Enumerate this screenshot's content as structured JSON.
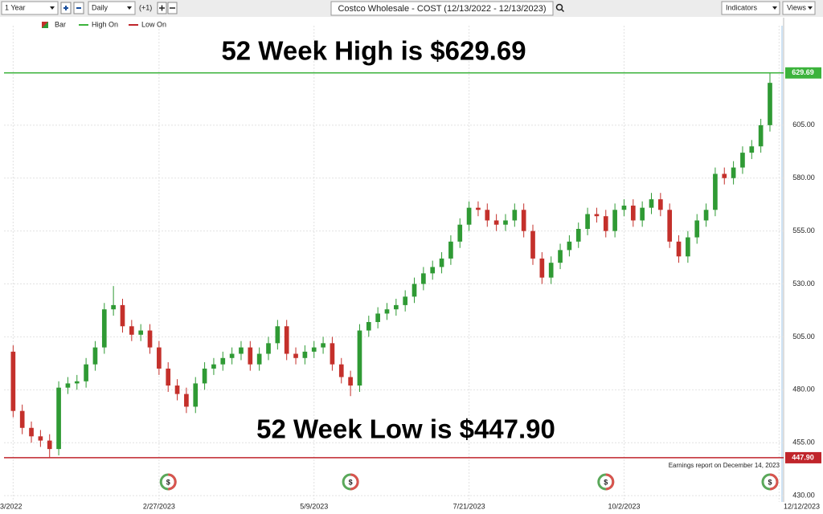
{
  "toolbar": {
    "period": "1 Year",
    "interval": "Daily",
    "offset": "(+1)",
    "symbol_title": "Costco Wholesale - COST (12/13/2022 - 12/13/2023)",
    "indicators": "Indicators",
    "views": "Views"
  },
  "chart_data": {
    "type": "candlestick",
    "legend": [
      "Bar",
      "High On",
      "Low On"
    ],
    "up_color": "#2f9a34",
    "down_color": "#c4302b",
    "annotations": [
      "52 Week High is $629.69",
      "52 Week Low is $447.90"
    ],
    "note": "Earnings report on December 14, 2023",
    "earnings_marker": "$",
    "earnings_x": [
      17,
      37,
      65,
      83
    ],
    "hlines": [
      {
        "name": "High On",
        "value": 629.69,
        "label": "629.69",
        "color": "#3cb33c"
      },
      {
        "name": "Low On",
        "value": 447.9,
        "label": "447.90",
        "color": "#c0252b"
      }
    ],
    "xlim": [
      -1,
      84.5
    ],
    "xticks": [
      {
        "value": 0,
        "label": "3/2022"
      },
      {
        "value": 16,
        "label": "2/27/2023"
      },
      {
        "value": 33,
        "label": "5/9/2023"
      },
      {
        "value": 50,
        "label": "7/21/2023"
      },
      {
        "value": 67,
        "label": "10/2/2023"
      },
      {
        "value": 84,
        "label": "12/12/2023"
      }
    ],
    "ylim": [
      427,
      652
    ],
    "yticks": [
      {
        "value": 430,
        "label": "430.00"
      },
      {
        "value": 455,
        "label": "455.00"
      },
      {
        "value": 480,
        "label": "480.00"
      },
      {
        "value": 505,
        "label": "505.00"
      },
      {
        "value": 530,
        "label": "530.00"
      },
      {
        "value": 555,
        "label": "555.00"
      },
      {
        "value": 580,
        "label": "580.00"
      },
      {
        "value": 605,
        "label": "605.00"
      }
    ],
    "open": [
      498,
      470,
      462,
      458,
      456,
      452,
      481,
      483,
      484,
      492,
      500,
      518,
      520,
      510,
      506,
      508,
      500,
      490,
      482,
      478,
      472,
      483,
      490,
      492,
      495,
      497,
      500,
      492,
      497,
      502,
      510,
      497,
      495,
      498,
      500,
      502,
      492,
      486,
      482,
      508,
      512,
      516,
      518,
      520,
      524,
      530,
      535,
      538,
      542,
      550,
      558,
      566,
      565,
      560,
      558,
      560,
      565,
      555,
      542,
      533,
      540,
      546,
      550,
      556,
      563,
      562,
      555,
      565,
      567,
      560,
      566,
      570,
      565,
      550,
      543,
      552,
      560,
      565,
      582,
      580,
      585,
      592,
      595,
      605
    ],
    "high": [
      501,
      473,
      465,
      461,
      459,
      484,
      486,
      487,
      495,
      503,
      521,
      529,
      523,
      513,
      511,
      511,
      503,
      493,
      485,
      481,
      486,
      493,
      495,
      498,
      500,
      503,
      503,
      500,
      505,
      513,
      513,
      500,
      501,
      503,
      505,
      505,
      495,
      489,
      511,
      515,
      519,
      521,
      523,
      527,
      533,
      538,
      541,
      545,
      553,
      561,
      569,
      569,
      568,
      563,
      563,
      568,
      568,
      558,
      545,
      543,
      549,
      553,
      559,
      566,
      566,
      565,
      568,
      570,
      570,
      569,
      573,
      573,
      568,
      553,
      555,
      563,
      568,
      585,
      585,
      588,
      595,
      598,
      608,
      629.69
    ],
    "low": [
      467,
      459,
      455,
      453,
      447.9,
      449,
      478,
      480,
      481,
      489,
      497,
      515,
      507,
      503,
      503,
      497,
      487,
      479,
      475,
      469,
      469,
      480,
      487,
      489,
      492,
      494,
      489,
      489,
      494,
      499,
      494,
      492,
      492,
      495,
      497,
      489,
      483,
      477,
      479,
      505,
      509,
      513,
      515,
      517,
      521,
      527,
      532,
      535,
      539,
      547,
      555,
      562,
      557,
      555,
      555,
      557,
      552,
      539,
      530,
      530,
      537,
      543,
      547,
      553,
      559,
      552,
      552,
      562,
      557,
      557,
      563,
      562,
      547,
      540,
      540,
      549,
      557,
      562,
      577,
      577,
      582,
      589,
      592,
      602
    ],
    "close": [
      470,
      462,
      458,
      456,
      452,
      481,
      483,
      484,
      492,
      500,
      518,
      520,
      510,
      506,
      508,
      500,
      490,
      482,
      478,
      472,
      483,
      490,
      492,
      495,
      497,
      500,
      492,
      497,
      502,
      510,
      497,
      495,
      498,
      500,
      502,
      492,
      486,
      482,
      508,
      512,
      516,
      518,
      520,
      524,
      530,
      535,
      538,
      542,
      550,
      558,
      566,
      565,
      560,
      558,
      560,
      565,
      555,
      542,
      533,
      540,
      546,
      550,
      556,
      563,
      562,
      555,
      565,
      567,
      560,
      566,
      570,
      565,
      550,
      543,
      552,
      560,
      565,
      582,
      580,
      585,
      592,
      595,
      605,
      625
    ]
  }
}
